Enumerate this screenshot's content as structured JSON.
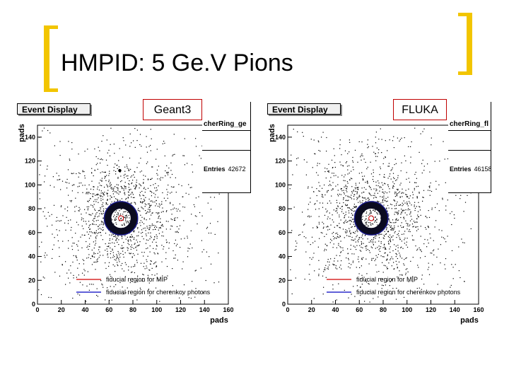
{
  "slide": {
    "title": "HMPID: 5 Ge.V Pions",
    "accent_color": "#f2c500"
  },
  "panels": [
    {
      "id": "left",
      "button_label": "Event Display",
      "generator_label": "Geant3",
      "hist_name": "cherRing_ge",
      "entries_label": "Entries",
      "entries_value": "42672"
    },
    {
      "id": "right",
      "button_label": "Event Display",
      "generator_label": "FLUKA",
      "hist_name": "cherRing_fl",
      "entries_label": "Entries",
      "entries_value": "46158"
    }
  ],
  "plot": {
    "xlabel": "pads",
    "ylabel": "pads",
    "x_ticks": [
      "0",
      "20",
      "40",
      "60",
      "80",
      "100",
      "120",
      "140",
      "160"
    ],
    "y_ticks": [
      "0",
      "20",
      "40",
      "60",
      "80",
      "100",
      "120",
      "140"
    ],
    "legend": [
      {
        "label": "fiducial region for MIP",
        "color": "#d00000"
      },
      {
        "label": "fiducial region for cherenkov photons",
        "color": "#0000c0"
      }
    ]
  },
  "chart_data": [
    {
      "type": "scatter",
      "title": "Geant3",
      "xlabel": "pads",
      "ylabel": "pads",
      "xlim": [
        0,
        160
      ],
      "ylim": [
        0,
        150
      ],
      "ring_center": [
        70,
        72
      ],
      "ring_radius_pads": 14
    },
    {
      "type": "scatter",
      "title": "FLUKA",
      "xlabel": "pads",
      "ylabel": "pads",
      "xlim": [
        0,
        160
      ],
      "ylim": [
        0,
        150
      ],
      "ring_center": [
        70,
        72
      ],
      "ring_radius_pads": 14
    }
  ]
}
